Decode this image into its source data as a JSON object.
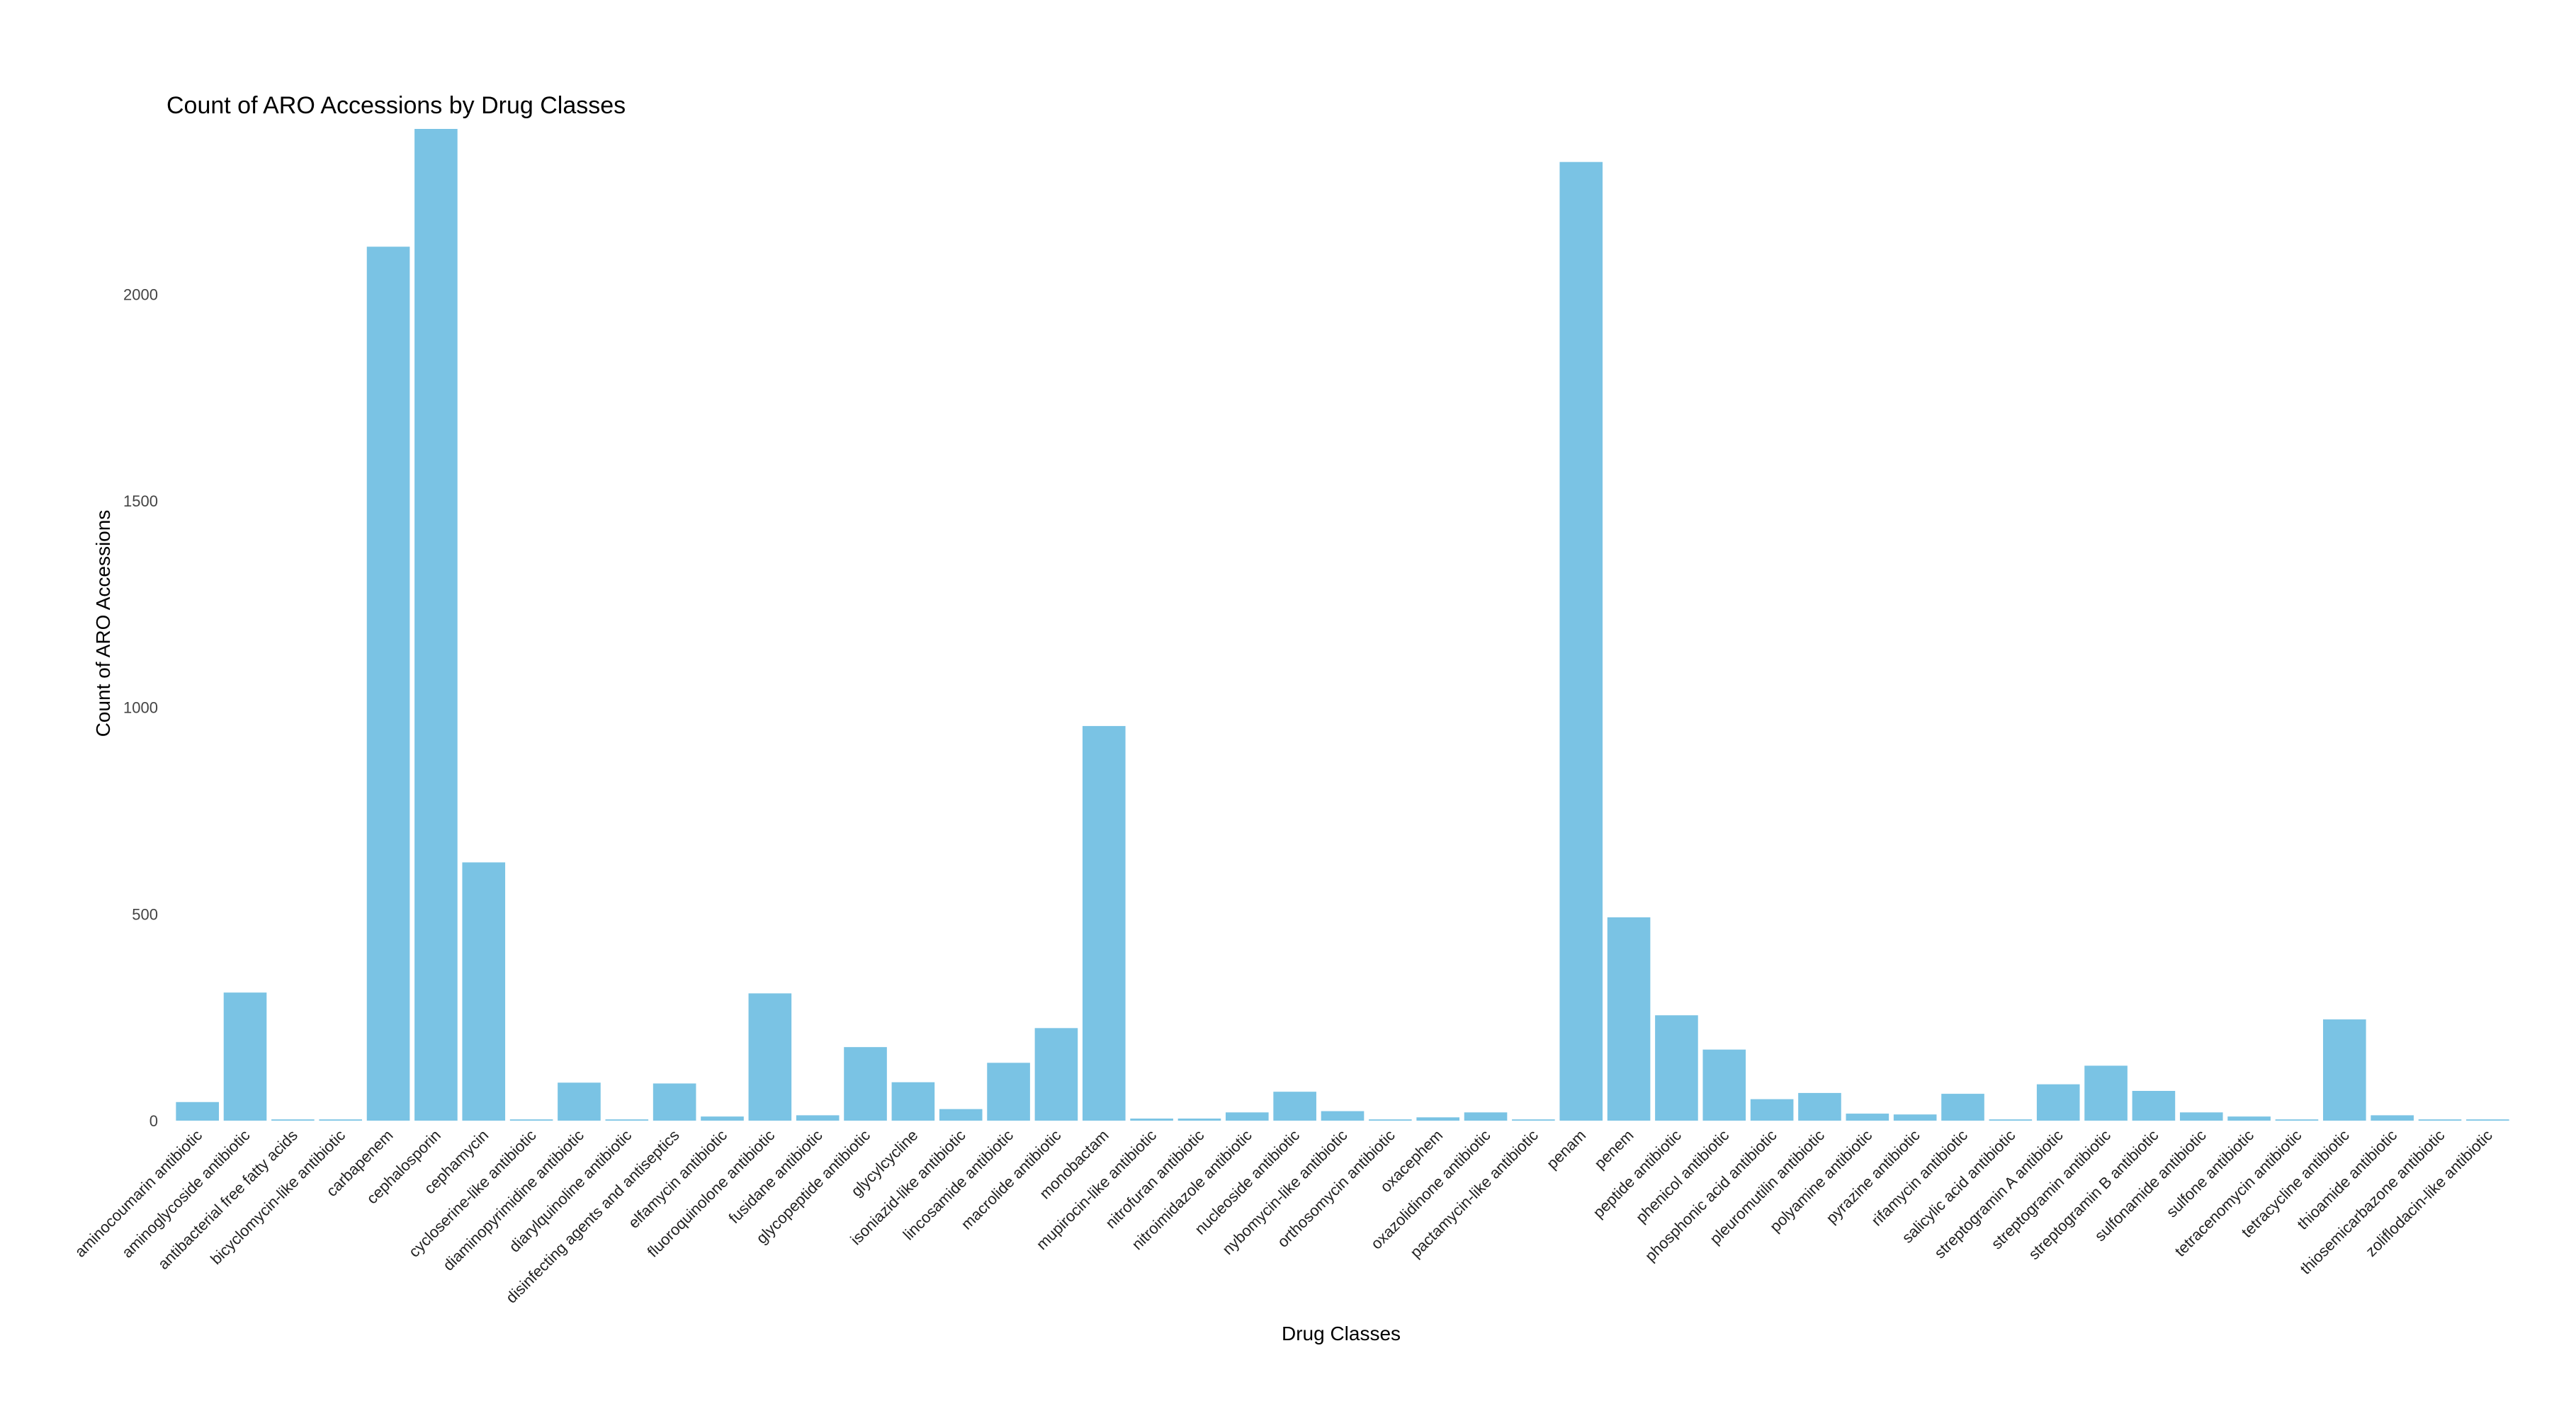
{
  "chart_data": {
    "type": "bar",
    "title": "Count of ARO Accessions by Drug Classes",
    "xlabel": "Drug Classes",
    "ylabel": "Count of ARO Accessions",
    "ylim": [
      0,
      2400
    ],
    "yticks": [
      0,
      500,
      1000,
      1500,
      2000
    ],
    "grid": false,
    "bar_color": "#7ac3e4",
    "categories": [
      "aminocoumarin antibiotic",
      "aminoglycoside antibiotic",
      "antibacterial free fatty acids",
      "bicyclomycin-like antibiotic",
      "carbapenem",
      "cephalosporin",
      "cephamycin",
      "cycloserine-like antibiotic",
      "diaminopyrimidine antibiotic",
      "diarylquinoline antibiotic",
      "disinfecting agents and antiseptics",
      "elfamycin antibiotic",
      "fluoroquinolone antibiotic",
      "fusidane antibiotic",
      "glycopeptide antibiotic",
      "glycylcycline",
      "isoniazid-like antibiotic",
      "lincosamide antibiotic",
      "macrolide antibiotic",
      "monobactam",
      "mupirocin-like antibiotic",
      "nitrofuran antibiotic",
      "nitroimidazole antibiotic",
      "nucleoside antibiotic",
      "nybomycin-like antibiotic",
      "orthosomycin antibiotic",
      "oxacephem",
      "oxazolidinone antibiotic",
      "pactamycin-like antibiotic",
      "penam",
      "penem",
      "peptide antibiotic",
      "phenicol antibiotic",
      "phosphonic acid antibiotic",
      "pleuromutilin antibiotic",
      "polyamine antibiotic",
      "pyrazine antibiotic",
      "rifamycin antibiotic",
      "salicylic acid antibiotic",
      "streptogramin A antibiotic",
      "streptogramin antibiotic",
      "streptogramin B antibiotic",
      "sulfonamide antibiotic",
      "sulfone antibiotic",
      "tetracenomycin antibiotic",
      "tetracycline antibiotic",
      "thioamide antibiotic",
      "thiosemicarbazone antibiotic",
      "zoliflodacin-like antibiotic"
    ],
    "values": [
      45,
      310,
      3,
      3,
      2115,
      2400,
      625,
      3,
      92,
      3,
      90,
      10,
      308,
      13,
      178,
      93,
      28,
      140,
      224,
      955,
      5,
      5,
      20,
      70,
      23,
      3,
      8,
      20,
      3,
      2320,
      492,
      255,
      172,
      52,
      67,
      17,
      15,
      65,
      3,
      88,
      133,
      72,
      20,
      10,
      3,
      245,
      13,
      3,
      3
    ]
  }
}
